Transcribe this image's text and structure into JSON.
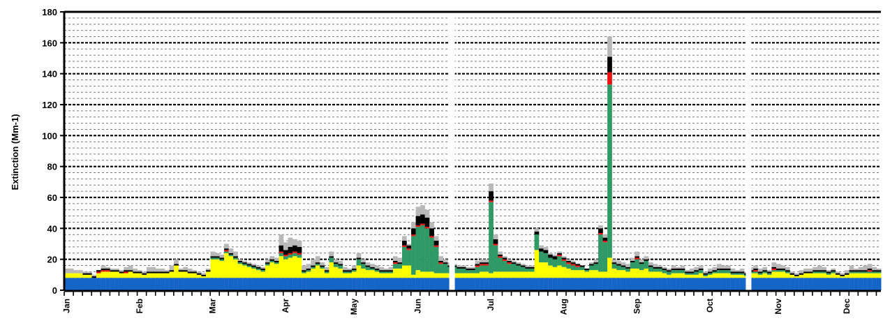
{
  "chart_data": {
    "type": "bar",
    "stacked": true,
    "ylabel": "Extinction (Mm-1)",
    "ylim": [
      0,
      180
    ],
    "yticks": [
      0,
      20,
      40,
      60,
      80,
      100,
      120,
      140,
      160,
      180
    ],
    "grid": true,
    "month_labels": [
      "Jan",
      "Feb",
      "Mar",
      "Apr",
      "May",
      "Jun",
      "Jul",
      "Aug",
      "Sep",
      "Oct",
      "Nov",
      "Dec"
    ],
    "gaps_after_index": [
      84,
      149
    ],
    "colors": [
      "#1565c8",
      "#ffff00",
      "#2f9a66",
      "#ee1111",
      "#000000",
      "#b8b8b8"
    ],
    "base_value": 8,
    "series_note": "components stacked bottom to top",
    "totals": [
      14,
      14,
      13,
      13,
      12,
      12,
      10,
      13,
      16,
      15,
      14,
      14,
      13,
      15,
      16,
      14,
      13,
      12,
      15,
      15,
      14,
      14,
      13,
      16,
      20,
      14,
      15,
      14,
      13,
      12,
      11,
      14,
      25,
      24,
      23,
      30,
      27,
      25,
      20,
      19,
      18,
      17,
      16,
      15,
      20,
      22,
      21,
      36,
      31,
      34,
      33,
      32,
      16,
      17,
      20,
      22,
      18,
      15,
      25,
      20,
      19,
      15,
      14,
      16,
      24,
      20,
      18,
      17,
      16,
      15,
      14,
      15,
      22,
      21,
      35,
      30,
      44,
      54,
      55,
      52,
      44,
      35,
      22,
      20,
      18,
      17,
      16,
      16,
      15,
      15,
      19,
      20,
      20,
      69,
      36,
      25,
      22,
      20,
      19,
      18,
      17,
      16,
      16,
      40,
      29,
      28,
      24,
      23,
      25,
      22,
      20,
      19,
      18,
      17,
      16,
      15,
      18,
      20,
      42,
      36,
      164,
      20,
      19,
      18,
      17,
      21,
      25,
      20,
      22,
      18,
      17,
      16,
      15,
      14,
      16,
      15,
      16,
      13,
      14,
      15,
      16,
      12,
      14,
      15,
      17,
      16,
      16,
      14,
      13,
      14,
      12,
      15,
      16,
      14,
      15,
      13,
      18,
      17,
      16,
      15,
      12,
      11,
      13,
      14,
      14,
      15,
      16,
      15,
      13,
      14,
      12,
      11,
      13,
      16,
      14,
      15,
      16,
      17,
      15,
      14
    ],
    "stacks": [
      [
        8,
        3,
        0,
        0,
        0,
        3
      ],
      [
        8,
        3,
        0,
        0,
        0,
        3
      ],
      [
        8,
        3,
        0,
        0,
        0,
        2
      ],
      [
        8,
        3,
        0,
        0,
        0,
        2
      ],
      [
        8,
        2,
        0,
        0,
        1,
        1
      ],
      [
        8,
        2,
        0,
        0,
        1,
        1
      ],
      [
        8,
        0,
        0,
        0,
        1,
        1
      ],
      [
        8,
        3,
        0,
        1,
        1,
        0
      ],
      [
        8,
        4,
        0,
        1,
        1,
        2
      ],
      [
        8,
        4,
        0,
        1,
        1,
        1
      ],
      [
        8,
        4,
        0,
        0,
        1,
        1
      ],
      [
        8,
        4,
        0,
        0,
        1,
        1
      ],
      [
        8,
        3,
        0,
        0,
        1,
        1
      ],
      [
        8,
        3,
        0,
        1,
        1,
        2
      ],
      [
        8,
        4,
        0,
        0,
        1,
        3
      ],
      [
        8,
        3,
        0,
        0,
        1,
        2
      ],
      [
        8,
        3,
        0,
        0,
        1,
        1
      ],
      [
        8,
        2,
        0,
        0,
        1,
        1
      ],
      [
        8,
        3,
        0,
        0,
        1,
        3
      ],
      [
        8,
        3,
        0,
        0,
        1,
        3
      ],
      [
        8,
        3,
        0,
        0,
        1,
        2
      ],
      [
        8,
        3,
        0,
        0,
        1,
        2
      ],
      [
        8,
        3,
        0,
        0,
        1,
        1
      ],
      [
        8,
        4,
        0,
        0,
        1,
        3
      ],
      [
        8,
        8,
        0,
        0,
        1,
        3
      ],
      [
        8,
        4,
        0,
        0,
        1,
        1
      ],
      [
        8,
        4,
        0,
        0,
        1,
        2
      ],
      [
        8,
        3,
        0,
        0,
        1,
        2
      ],
      [
        8,
        3,
        0,
        0,
        1,
        1
      ],
      [
        8,
        2,
        0,
        0,
        1,
        1
      ],
      [
        8,
        1,
        0,
        0,
        1,
        1
      ],
      [
        8,
        4,
        0,
        0,
        1,
        1
      ],
      [
        8,
        12,
        1,
        0,
        1,
        3
      ],
      [
        8,
        12,
        1,
        0,
        1,
        2
      ],
      [
        8,
        11,
        1,
        0,
        1,
        2
      ],
      [
        8,
        16,
        1,
        1,
        1,
        3
      ],
      [
        8,
        14,
        1,
        0,
        1,
        3
      ],
      [
        8,
        12,
        1,
        0,
        1,
        3
      ],
      [
        8,
        9,
        1,
        0,
        1,
        1
      ],
      [
        8,
        8,
        1,
        0,
        1,
        1
      ],
      [
        8,
        7,
        1,
        0,
        1,
        1
      ],
      [
        8,
        6,
        1,
        0,
        1,
        1
      ],
      [
        8,
        5,
        1,
        0,
        1,
        1
      ],
      [
        8,
        4,
        1,
        0,
        1,
        1
      ],
      [
        8,
        8,
        1,
        0,
        1,
        2
      ],
      [
        8,
        10,
        1,
        0,
        1,
        2
      ],
      [
        8,
        9,
        1,
        0,
        1,
        2
      ],
      [
        8,
        14,
        2,
        1,
        4,
        7
      ],
      [
        8,
        12,
        2,
        1,
        3,
        5
      ],
      [
        8,
        13,
        2,
        1,
        4,
        6
      ],
      [
        8,
        14,
        2,
        1,
        4,
        4
      ],
      [
        8,
        13,
        2,
        1,
        4,
        4
      ],
      [
        8,
        3,
        1,
        0,
        1,
        3
      ],
      [
        8,
        4,
        1,
        0,
        1,
        3
      ],
      [
        8,
        6,
        1,
        0,
        1,
        4
      ],
      [
        8,
        8,
        1,
        0,
        1,
        4
      ],
      [
        8,
        6,
        1,
        0,
        1,
        2
      ],
      [
        8,
        3,
        1,
        0,
        1,
        2
      ],
      [
        8,
        10,
        3,
        0,
        1,
        3
      ],
      [
        8,
        7,
        2,
        0,
        1,
        2
      ],
      [
        8,
        6,
        2,
        0,
        1,
        2
      ],
      [
        8,
        3,
        1,
        0,
        1,
        2
      ],
      [
        8,
        3,
        1,
        0,
        1,
        1
      ],
      [
        8,
        4,
        1,
        0,
        1,
        2
      ],
      [
        8,
        8,
        4,
        0,
        1,
        3
      ],
      [
        8,
        6,
        3,
        0,
        1,
        2
      ],
      [
        8,
        5,
        2,
        0,
        1,
        2
      ],
      [
        8,
        5,
        1,
        0,
        1,
        2
      ],
      [
        8,
        4,
        1,
        0,
        1,
        2
      ],
      [
        8,
        3,
        1,
        0,
        1,
        2
      ],
      [
        8,
        3,
        1,
        0,
        1,
        1
      ],
      [
        8,
        3,
        1,
        0,
        1,
        2
      ],
      [
        8,
        6,
        3,
        1,
        1,
        3
      ],
      [
        8,
        6,
        3,
        0,
        1,
        3
      ],
      [
        8,
        8,
        12,
        1,
        3,
        3
      ],
      [
        8,
        8,
        10,
        1,
        2,
        1
      ],
      [
        8,
        2,
        25,
        1,
        4,
        4
      ],
      [
        8,
        5,
        28,
        1,
        6,
        6
      ],
      [
        8,
        4,
        30,
        1,
        6,
        6
      ],
      [
        8,
        4,
        28,
        1,
        6,
        5
      ],
      [
        8,
        4,
        22,
        1,
        5,
        4
      ],
      [
        8,
        3,
        17,
        1,
        3,
        3
      ],
      [
        8,
        3,
        6,
        1,
        1,
        3
      ],
      [
        8,
        3,
        6,
        0,
        1,
        2
      ],
      [
        8,
        3,
        4,
        0,
        1,
        2
      ],
      [
        8,
        3,
        4,
        0,
        1,
        1
      ],
      [
        8,
        3,
        3,
        0,
        1,
        1
      ],
      [
        8,
        3,
        3,
        0,
        1,
        1
      ],
      [
        8,
        3,
        2,
        0,
        1,
        1
      ],
      [
        8,
        3,
        2,
        0,
        1,
        1
      ],
      [
        8,
        3,
        4,
        1,
        1,
        2
      ],
      [
        8,
        4,
        4,
        1,
        1,
        2
      ],
      [
        8,
        4,
        4,
        1,
        1,
        2
      ],
      [
        8,
        3,
        46,
        1,
        6,
        5
      ],
      [
        8,
        4,
        17,
        1,
        3,
        3
      ],
      [
        8,
        4,
        9,
        1,
        1,
        2
      ],
      [
        8,
        4,
        7,
        1,
        1,
        1
      ],
      [
        8,
        4,
        5,
        1,
        1,
        1
      ],
      [
        8,
        4,
        5,
        0,
        1,
        1
      ],
      [
        8,
        4,
        4,
        0,
        1,
        1
      ],
      [
        8,
        4,
        3,
        0,
        1,
        1
      ],
      [
        8,
        4,
        2,
        0,
        1,
        1
      ],
      [
        8,
        4,
        2,
        0,
        1,
        1
      ],
      [
        8,
        18,
        10,
        0,
        2,
        2
      ],
      [
        8,
        10,
        7,
        0,
        2,
        2
      ],
      [
        8,
        10,
        6,
        0,
        2,
        2
      ],
      [
        8,
        8,
        5,
        0,
        2,
        1
      ],
      [
        8,
        7,
        5,
        0,
        2,
        1
      ],
      [
        8,
        8,
        6,
        1,
        1,
        1
      ],
      [
        8,
        7,
        4,
        1,
        1,
        1
      ],
      [
        8,
        6,
        3,
        1,
        1,
        1
      ],
      [
        8,
        5,
        3,
        1,
        1,
        1
      ],
      [
        8,
        5,
        2,
        1,
        1,
        0
      ],
      [
        8,
        5,
        2,
        0,
        1,
        0
      ],
      [
        8,
        4,
        1,
        0,
        1,
        0
      ],
      [
        8,
        5,
        3,
        0,
        1,
        1
      ],
      [
        8,
        5,
        4,
        0,
        1,
        2
      ],
      [
        8,
        4,
        24,
        1,
        3,
        2
      ],
      [
        8,
        4,
        19,
        1,
        2,
        2
      ],
      [
        8,
        13,
        112,
        8,
        10,
        13
      ],
      [
        8,
        6,
        3,
        0,
        1,
        2
      ],
      [
        8,
        5,
        3,
        0,
        1,
        2
      ],
      [
        8,
        5,
        2,
        0,
        1,
        2
      ],
      [
        8,
        4,
        2,
        0,
        1,
        2
      ],
      [
        8,
        6,
        4,
        0,
        1,
        2
      ],
      [
        8,
        6,
        6,
        1,
        1,
        3
      ],
      [
        8,
        5,
        4,
        0,
        1,
        2
      ],
      [
        8,
        6,
        5,
        0,
        1,
        2
      ],
      [
        8,
        4,
        3,
        0,
        1,
        2
      ],
      [
        8,
        4,
        2,
        0,
        1,
        2
      ],
      [
        8,
        4,
        2,
        0,
        1,
        1
      ],
      [
        8,
        3,
        2,
        0,
        1,
        1
      ],
      [
        8,
        2,
        2,
        0,
        1,
        1
      ],
      [
        8,
        3,
        2,
        0,
        1,
        2
      ],
      [
        8,
        3,
        2,
        0,
        1,
        1
      ],
      [
        8,
        3,
        2,
        0,
        1,
        2
      ],
      [
        8,
        2,
        1,
        0,
        1,
        1
      ],
      [
        8,
        2,
        1,
        0,
        1,
        2
      ],
      [
        8,
        2,
        2,
        0,
        1,
        2
      ],
      [
        8,
        3,
        2,
        0,
        1,
        2
      ],
      [
        8,
        1,
        1,
        0,
        1,
        1
      ],
      [
        8,
        2,
        1,
        0,
        1,
        2
      ],
      [
        8,
        3,
        1,
        0,
        1,
        2
      ],
      [
        8,
        3,
        2,
        0,
        1,
        3
      ],
      [
        8,
        3,
        2,
        0,
        1,
        2
      ],
      [
        8,
        3,
        2,
        0,
        1,
        2
      ],
      [
        8,
        2,
        1,
        0,
        1,
        2
      ],
      [
        8,
        2,
        1,
        0,
        1,
        1
      ],
      [
        8,
        2,
        1,
        0,
        1,
        2
      ],
      [
        8,
        1,
        1,
        0,
        1,
        1
      ],
      [
        8,
        3,
        1,
        0,
        1,
        2
      ],
      [
        8,
        3,
        1,
        1,
        1,
        2
      ],
      [
        8,
        2,
        1,
        0,
        1,
        2
      ],
      [
        8,
        3,
        1,
        0,
        1,
        2
      ],
      [
        8,
        2,
        1,
        0,
        1,
        1
      ],
      [
        8,
        4,
        1,
        1,
        1,
        3
      ],
      [
        8,
        4,
        1,
        0,
        1,
        3
      ],
      [
        8,
        4,
        1,
        0,
        1,
        2
      ],
      [
        8,
        3,
        1,
        0,
        1,
        2
      ],
      [
        8,
        2,
        0,
        0,
        1,
        1
      ],
      [
        8,
        1,
        0,
        0,
        1,
        1
      ],
      [
        8,
        2,
        0,
        0,
        1,
        2
      ],
      [
        8,
        3,
        0,
        0,
        1,
        2
      ],
      [
        8,
        3,
        0,
        0,
        1,
        2
      ],
      [
        8,
        3,
        1,
        0,
        1,
        2
      ],
      [
        8,
        3,
        1,
        0,
        1,
        3
      ],
      [
        8,
        3,
        1,
        0,
        1,
        2
      ],
      [
        8,
        2,
        1,
        0,
        1,
        1
      ],
      [
        8,
        3,
        1,
        0,
        1,
        1
      ],
      [
        8,
        2,
        0,
        0,
        1,
        1
      ],
      [
        8,
        1,
        0,
        0,
        1,
        1
      ],
      [
        8,
        2,
        0,
        0,
        1,
        2
      ],
      [
        8,
        3,
        1,
        0,
        1,
        3
      ],
      [
        8,
        3,
        1,
        0,
        1,
        1
      ],
      [
        8,
        3,
        1,
        0,
        1,
        2
      ],
      [
        8,
        3,
        1,
        0,
        1,
        3
      ],
      [
        8,
        3,
        1,
        1,
        1,
        3
      ],
      [
        8,
        3,
        1,
        0,
        1,
        2
      ],
      [
        8,
        3,
        1,
        0,
        1,
        1
      ]
    ]
  }
}
